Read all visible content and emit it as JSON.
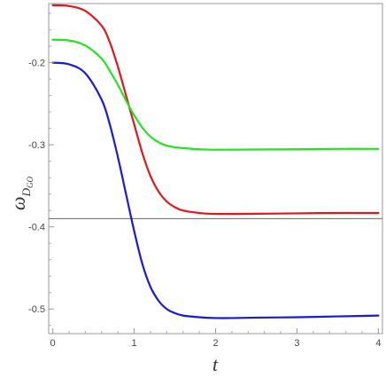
{
  "chart_data": {
    "type": "line",
    "title": "",
    "xlabel": "t",
    "ylabel": "ω",
    "ylabel_sub": "D",
    "ylabel_subsub": "GO",
    "xlim": [
      -0.05,
      4.05
    ],
    "ylim": [
      -0.53,
      -0.128
    ],
    "x_ticks": [
      0,
      1,
      2,
      3,
      4
    ],
    "x_tick_labels": [
      "0",
      "1",
      "2",
      "3",
      "4"
    ],
    "y_ticks": [
      -0.2,
      -0.3,
      -0.4,
      -0.5
    ],
    "y_tick_labels": [
      "-0.2",
      "-0.3",
      "-0.4",
      "-0.5"
    ],
    "grid": false,
    "reference_line": {
      "y": -0.39,
      "color": "#777777"
    },
    "series": [
      {
        "color": "#e8141a",
        "x": [
          0,
          0.2,
          0.4,
          0.6,
          0.7,
          0.8,
          0.9,
          1.0,
          1.1,
          1.2,
          1.3,
          1.4,
          1.5,
          1.6,
          1.8,
          2.0,
          2.5,
          3.0,
          3.5,
          4.0
        ],
        "y": [
          -0.13,
          -0.131,
          -0.137,
          -0.155,
          -0.175,
          -0.205,
          -0.24,
          -0.275,
          -0.31,
          -0.338,
          -0.357,
          -0.369,
          -0.376,
          -0.38,
          -0.383,
          -0.3842,
          -0.384,
          -0.3835,
          -0.383,
          -0.383
        ]
      },
      {
        "color": "#22e41f",
        "x": [
          0,
          0.2,
          0.4,
          0.6,
          0.7,
          0.8,
          0.9,
          1.0,
          1.1,
          1.2,
          1.3,
          1.4,
          1.5,
          1.6,
          1.8,
          2.0,
          2.5,
          3.0,
          3.5,
          4.0
        ],
        "y": [
          -0.172,
          -0.173,
          -0.179,
          -0.195,
          -0.21,
          -0.227,
          -0.246,
          -0.264,
          -0.279,
          -0.29,
          -0.297,
          -0.301,
          -0.303,
          -0.304,
          -0.3055,
          -0.306,
          -0.3058,
          -0.3055,
          -0.305,
          -0.305
        ]
      },
      {
        "color": "#1818e0",
        "x": [
          0,
          0.2,
          0.4,
          0.6,
          0.7,
          0.8,
          0.9,
          1.0,
          1.1,
          1.2,
          1.3,
          1.4,
          1.5,
          1.6,
          1.8,
          2.0,
          2.2,
          2.5,
          3.0,
          3.5,
          4.0
        ],
        "y": [
          -0.2,
          -0.202,
          -0.213,
          -0.245,
          -0.275,
          -0.315,
          -0.36,
          -0.405,
          -0.445,
          -0.473,
          -0.49,
          -0.5,
          -0.505,
          -0.508,
          -0.51,
          -0.511,
          -0.511,
          -0.5105,
          -0.51,
          -0.509,
          -0.508
        ]
      }
    ]
  }
}
